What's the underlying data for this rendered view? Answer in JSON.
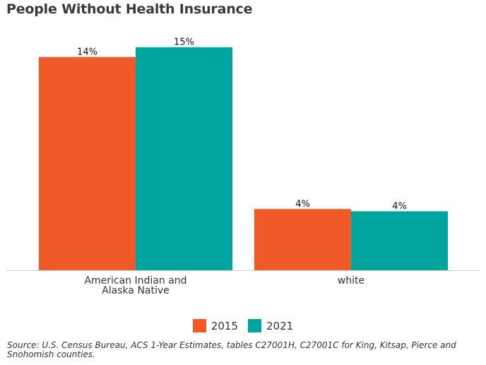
{
  "chart_data": {
    "type": "bar",
    "title": "People Without Health Insurance",
    "categories": [
      "American Indian and Alaska Native",
      "white"
    ],
    "category_lines": [
      [
        "American Indian and",
        "Alaska Native"
      ],
      [
        "white"
      ]
    ],
    "series": [
      {
        "name": "2015",
        "values": [
          14,
          4
        ],
        "labels": [
          "14%",
          "4%"
        ],
        "color": "#f05a28"
      },
      {
        "name": "2021",
        "values": [
          15,
          4
        ],
        "labels": [
          "15%",
          "4%"
        ],
        "color": "#00a5a0"
      }
    ],
    "bar_heights": [
      [
        14.1,
        4.05
      ],
      [
        14.75,
        3.9
      ]
    ],
    "ylim": [
      0,
      16
    ],
    "grid": false,
    "legend_position": "bottom",
    "source": "Source: U.S. Census Bureau, ACS 1-Year Estimates, tables C27001H, C27001C for King, Kitsap, Pierce and Snohomish counties."
  }
}
